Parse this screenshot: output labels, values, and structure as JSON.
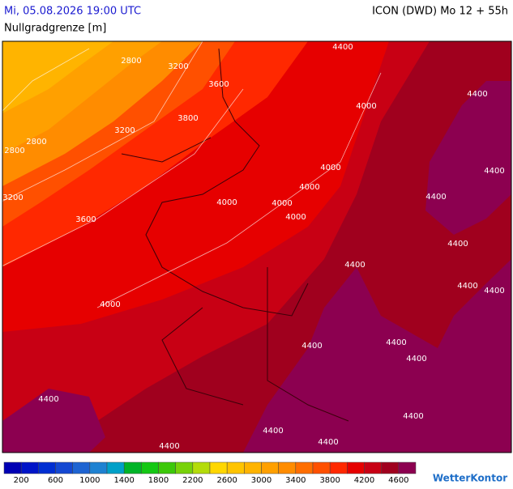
{
  "header": {
    "datetime": "Mi, 05.08.2026 19:00 UTC",
    "model": "ICON (DWD) Mo 12 + 55h",
    "parameter": "Nullgradgrenze [m]"
  },
  "contour_labels": [
    "2800",
    "3200",
    "3600",
    "3800",
    "3200",
    "2800",
    "2800",
    "3200",
    "3600",
    "4000",
    "4000",
    "4000",
    "4000",
    "4000",
    "4000",
    "4000",
    "4400",
    "4400",
    "4400",
    "4400",
    "4400",
    "4400",
    "4400",
    "4400",
    "4400",
    "4400",
    "4400",
    "4400",
    "4400",
    "4400",
    "4400",
    "4400"
  ],
  "colorbar": {
    "labels": [
      "200",
      "600",
      "1000",
      "1400",
      "1800",
      "2200",
      "2600",
      "3000",
      "3400",
      "3800",
      "4200",
      "4600"
    ],
    "colors": [
      "#0000b4",
      "#0014c8",
      "#002ed2",
      "#1448d2",
      "#1e64d2",
      "#1e82d2",
      "#00a0c8",
      "#00b428",
      "#14c814",
      "#3cc80a",
      "#78d20a",
      "#b4dc0a",
      "#ffd700",
      "#ffc400",
      "#ffb400",
      "#ffa000",
      "#ff8c00",
      "#ff6e00",
      "#ff5000",
      "#ff2800",
      "#e60000",
      "#c80014",
      "#a0001e",
      "#8c0050"
    ]
  },
  "logo": "WetterKontor"
}
